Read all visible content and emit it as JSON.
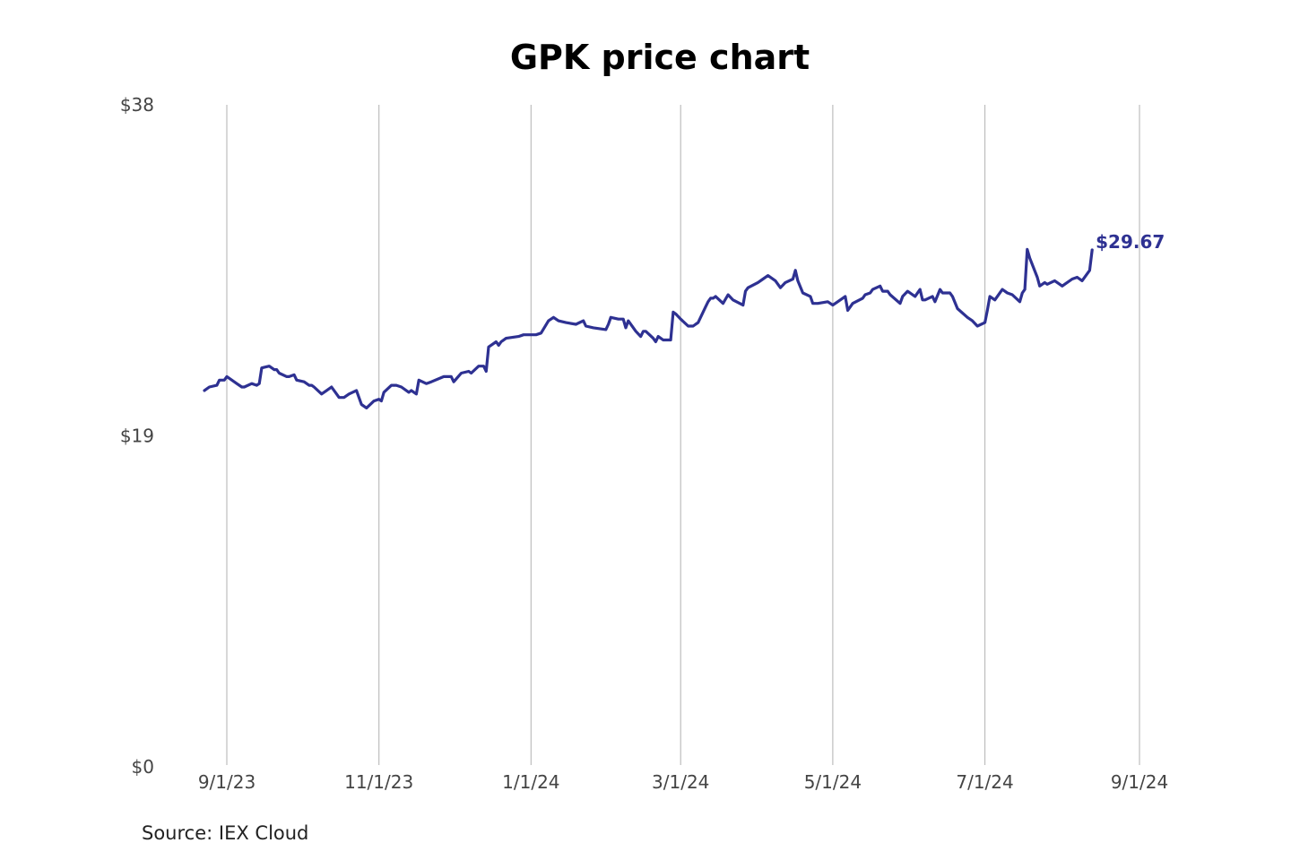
{
  "chart_data": {
    "type": "line",
    "title": "GPK price chart",
    "source": "Source: IEX Cloud",
    "ylim": [
      0,
      38
    ],
    "y_ticks": [
      {
        "value": 0,
        "label": "$0"
      },
      {
        "value": 19,
        "label": "$19"
      },
      {
        "value": 38,
        "label": "$38"
      }
    ],
    "x_ticks": [
      {
        "date": "2023-09-01",
        "label": "9/1/23"
      },
      {
        "date": "2023-11-01",
        "label": "11/1/23"
      },
      {
        "date": "2024-01-01",
        "label": "1/1/24"
      },
      {
        "date": "2024-03-01",
        "label": "3/1/24"
      },
      {
        "date": "2024-05-01",
        "label": "5/1/24"
      },
      {
        "date": "2024-07-01",
        "label": "7/1/24"
      },
      {
        "date": "2024-09-01",
        "label": "9/1/24"
      }
    ],
    "grid": "vertical",
    "end_label": "$29.67",
    "series": [
      {
        "color": "#2e3192",
        "points": [
          [
            "2023-08-23",
            21.6
          ],
          [
            "2023-08-25",
            21.8
          ],
          [
            "2023-08-28",
            21.9
          ],
          [
            "2023-08-29",
            22.2
          ],
          [
            "2023-08-31",
            22.2
          ],
          [
            "2023-09-01",
            22.4
          ],
          [
            "2023-09-05",
            22.0
          ],
          [
            "2023-09-07",
            21.8
          ],
          [
            "2023-09-08",
            21.8
          ],
          [
            "2023-09-11",
            22.0
          ],
          [
            "2023-09-13",
            21.9
          ],
          [
            "2023-09-14",
            22.0
          ],
          [
            "2023-09-15",
            22.9
          ],
          [
            "2023-09-18",
            23.0
          ],
          [
            "2023-09-20",
            22.8
          ],
          [
            "2023-09-21",
            22.8
          ],
          [
            "2023-09-22",
            22.6
          ],
          [
            "2023-09-25",
            22.4
          ],
          [
            "2023-09-26",
            22.4
          ],
          [
            "2023-09-28",
            22.5
          ],
          [
            "2023-09-29",
            22.2
          ],
          [
            "2023-10-02",
            22.1
          ],
          [
            "2023-10-04",
            21.9
          ],
          [
            "2023-10-05",
            21.9
          ],
          [
            "2023-10-06",
            21.8
          ],
          [
            "2023-10-09",
            21.4
          ],
          [
            "2023-10-11",
            21.6
          ],
          [
            "2023-10-13",
            21.8
          ],
          [
            "2023-10-16",
            21.2
          ],
          [
            "2023-10-18",
            21.2
          ],
          [
            "2023-10-20",
            21.4
          ],
          [
            "2023-10-23",
            21.6
          ],
          [
            "2023-10-25",
            20.8
          ],
          [
            "2023-10-27",
            20.6
          ],
          [
            "2023-10-30",
            21.0
          ],
          [
            "2023-11-01",
            21.1
          ],
          [
            "2023-11-02",
            21.0
          ],
          [
            "2023-11-03",
            21.5
          ],
          [
            "2023-11-06",
            21.9
          ],
          [
            "2023-11-08",
            21.9
          ],
          [
            "2023-11-10",
            21.8
          ],
          [
            "2023-11-13",
            21.5
          ],
          [
            "2023-11-14",
            21.6
          ],
          [
            "2023-11-16",
            21.4
          ],
          [
            "2023-11-17",
            22.2
          ],
          [
            "2023-11-20",
            22.0
          ],
          [
            "2023-11-22",
            22.1
          ],
          [
            "2023-11-27",
            22.4
          ],
          [
            "2023-11-30",
            22.4
          ],
          [
            "2023-12-01",
            22.1
          ],
          [
            "2023-12-04",
            22.6
          ],
          [
            "2023-12-07",
            22.7
          ],
          [
            "2023-12-08",
            22.6
          ],
          [
            "2023-12-11",
            23.0
          ],
          [
            "2023-12-13",
            23.0
          ],
          [
            "2023-12-14",
            22.7
          ],
          [
            "2023-12-15",
            24.1
          ],
          [
            "2023-12-18",
            24.4
          ],
          [
            "2023-12-19",
            24.2
          ],
          [
            "2023-12-20",
            24.4
          ],
          [
            "2023-12-22",
            24.6
          ],
          [
            "2023-12-27",
            24.7
          ],
          [
            "2023-12-29",
            24.8
          ],
          [
            "2024-01-02",
            24.8
          ],
          [
            "2024-01-03",
            24.8
          ],
          [
            "2024-01-05",
            24.9
          ],
          [
            "2024-01-08",
            25.6
          ],
          [
            "2024-01-10",
            25.8
          ],
          [
            "2024-01-12",
            25.6
          ],
          [
            "2024-01-15",
            25.5
          ],
          [
            "2024-01-19",
            25.4
          ],
          [
            "2024-01-22",
            25.6
          ],
          [
            "2024-01-23",
            25.3
          ],
          [
            "2024-01-26",
            25.2
          ],
          [
            "2024-01-31",
            25.1
          ],
          [
            "2024-02-01",
            25.4
          ],
          [
            "2024-02-02",
            25.8
          ],
          [
            "2024-02-05",
            25.7
          ],
          [
            "2024-02-07",
            25.7
          ],
          [
            "2024-02-08",
            25.2
          ],
          [
            "2024-02-09",
            25.6
          ],
          [
            "2024-02-12",
            25.0
          ],
          [
            "2024-02-14",
            24.7
          ],
          [
            "2024-02-15",
            25.0
          ],
          [
            "2024-02-16",
            25.0
          ],
          [
            "2024-02-19",
            24.6
          ],
          [
            "2024-02-20",
            24.4
          ],
          [
            "2024-02-21",
            24.7
          ],
          [
            "2024-02-22",
            24.6
          ],
          [
            "2024-02-23",
            24.5
          ],
          [
            "2024-02-26",
            24.5
          ],
          [
            "2024-02-27",
            26.1
          ],
          [
            "2024-02-28",
            26.0
          ],
          [
            "2024-03-01",
            25.7
          ],
          [
            "2024-03-04",
            25.3
          ],
          [
            "2024-03-06",
            25.3
          ],
          [
            "2024-03-07",
            25.4
          ],
          [
            "2024-03-08",
            25.5
          ],
          [
            "2024-03-11",
            26.4
          ],
          [
            "2024-03-12",
            26.7
          ],
          [
            "2024-03-13",
            26.9
          ],
          [
            "2024-03-14",
            26.9
          ],
          [
            "2024-03-15",
            27.0
          ],
          [
            "2024-03-18",
            26.6
          ],
          [
            "2024-03-20",
            27.1
          ],
          [
            "2024-03-22",
            26.8
          ],
          [
            "2024-03-26",
            26.5
          ],
          [
            "2024-03-27",
            27.3
          ],
          [
            "2024-03-28",
            27.5
          ],
          [
            "2024-04-01",
            27.8
          ],
          [
            "2024-04-03",
            28.0
          ],
          [
            "2024-04-05",
            28.2
          ],
          [
            "2024-04-08",
            27.9
          ],
          [
            "2024-04-10",
            27.5
          ],
          [
            "2024-04-12",
            27.8
          ],
          [
            "2024-04-15",
            28.0
          ],
          [
            "2024-04-16",
            28.5
          ],
          [
            "2024-04-17",
            27.9
          ],
          [
            "2024-04-19",
            27.2
          ],
          [
            "2024-04-22",
            27.0
          ],
          [
            "2024-04-23",
            26.6
          ],
          [
            "2024-04-25",
            26.6
          ],
          [
            "2024-04-29",
            26.7
          ],
          [
            "2024-05-01",
            26.5
          ],
          [
            "2024-05-03",
            26.7
          ],
          [
            "2024-05-06",
            27.0
          ],
          [
            "2024-05-07",
            26.2
          ],
          [
            "2024-05-08",
            26.4
          ],
          [
            "2024-05-09",
            26.6
          ],
          [
            "2024-05-13",
            26.9
          ],
          [
            "2024-05-14",
            27.1
          ],
          [
            "2024-05-16",
            27.2
          ],
          [
            "2024-05-17",
            27.4
          ],
          [
            "2024-05-20",
            27.6
          ],
          [
            "2024-05-21",
            27.3
          ],
          [
            "2024-05-23",
            27.3
          ],
          [
            "2024-05-24",
            27.1
          ],
          [
            "2024-05-28",
            26.6
          ],
          [
            "2024-05-29",
            27.0
          ],
          [
            "2024-05-31",
            27.3
          ],
          [
            "2024-06-03",
            27.0
          ],
          [
            "2024-06-05",
            27.4
          ],
          [
            "2024-06-06",
            26.8
          ],
          [
            "2024-06-07",
            26.8
          ],
          [
            "2024-06-10",
            27.0
          ],
          [
            "2024-06-11",
            26.7
          ],
          [
            "2024-06-13",
            27.4
          ],
          [
            "2024-06-14",
            27.2
          ],
          [
            "2024-06-17",
            27.2
          ],
          [
            "2024-06-18",
            27.0
          ],
          [
            "2024-06-20",
            26.3
          ],
          [
            "2024-06-24",
            25.8
          ],
          [
            "2024-06-26",
            25.6
          ],
          [
            "2024-06-28",
            25.3
          ],
          [
            "2024-07-01",
            25.5
          ],
          [
            "2024-07-02",
            26.2
          ],
          [
            "2024-07-03",
            27.0
          ],
          [
            "2024-07-05",
            26.8
          ],
          [
            "2024-07-08",
            27.4
          ],
          [
            "2024-07-10",
            27.2
          ],
          [
            "2024-07-12",
            27.1
          ],
          [
            "2024-07-15",
            26.7
          ],
          [
            "2024-07-16",
            27.2
          ],
          [
            "2024-07-17",
            27.4
          ],
          [
            "2024-07-18",
            29.7
          ],
          [
            "2024-07-19",
            29.2
          ],
          [
            "2024-07-22",
            28.1
          ],
          [
            "2024-07-23",
            27.6
          ],
          [
            "2024-07-25",
            27.8
          ],
          [
            "2024-07-26",
            27.7
          ],
          [
            "2024-07-29",
            27.9
          ],
          [
            "2024-07-31",
            27.7
          ],
          [
            "2024-08-01",
            27.6
          ],
          [
            "2024-08-02",
            27.7
          ],
          [
            "2024-08-05",
            28.0
          ],
          [
            "2024-08-07",
            28.1
          ],
          [
            "2024-08-09",
            27.9
          ],
          [
            "2024-08-12",
            28.5
          ],
          [
            "2024-08-13",
            29.67
          ]
        ]
      }
    ]
  }
}
